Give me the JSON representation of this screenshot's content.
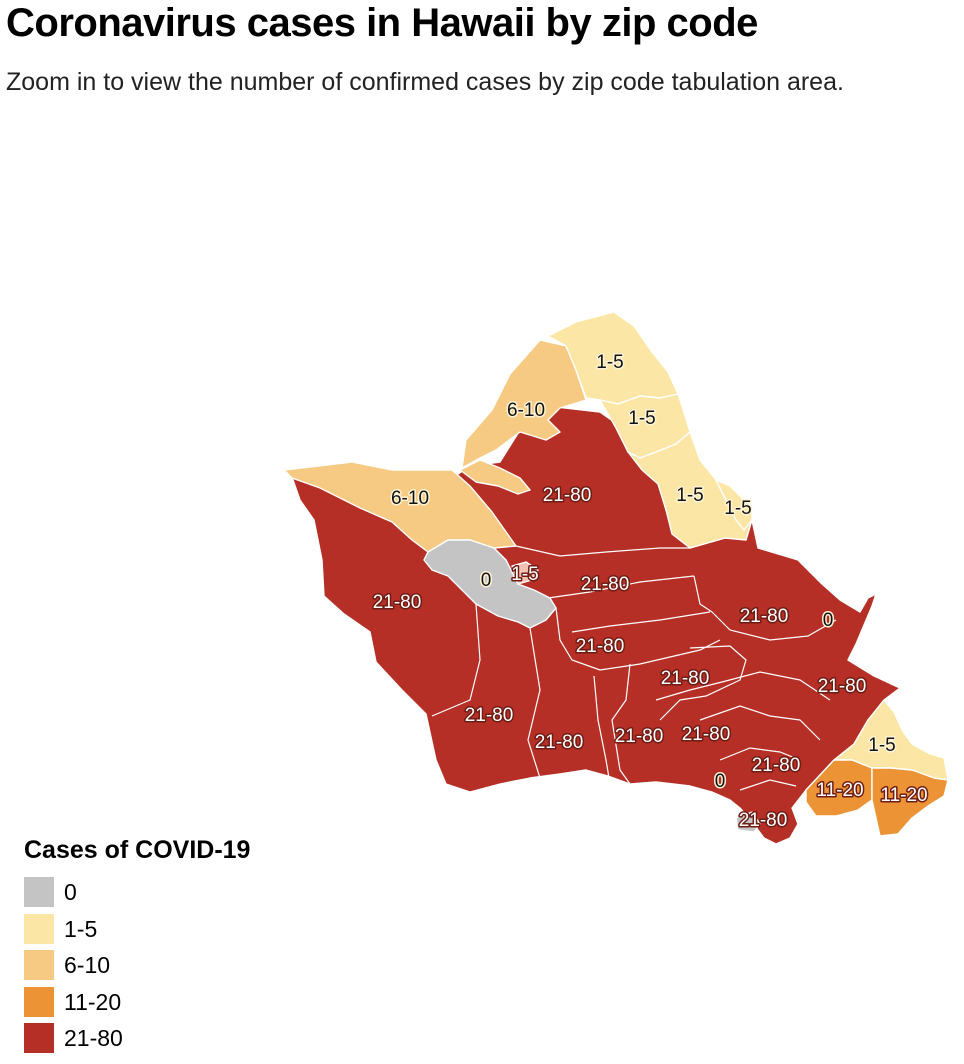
{
  "title": "Coronavirus cases in Hawaii by zip code",
  "subtitle": "Zoom in to view the number of confirmed cases by zip code tabulation area.",
  "legend": {
    "title": "Cases of COVID-19",
    "items": [
      {
        "label": "0",
        "color": "#c4c4c4"
      },
      {
        "label": "1-5",
        "color": "#fce6a6"
      },
      {
        "label": "6-10",
        "color": "#f6ca82"
      },
      {
        "label": "11-20",
        "color": "#ec9336"
      },
      {
        "label": "21-80",
        "color": "#b52f26"
      }
    ]
  },
  "map": {
    "labels": [
      "1-5",
      "6-10",
      "1-5",
      "6-10",
      "21-80",
      "1-5",
      "1-5",
      "0",
      "1-5",
      "21-80",
      "21-80",
      "21-80",
      "21-80",
      "0",
      "21-80",
      "21-80",
      "21-80",
      "21-80",
      "21-80",
      "21-80",
      "1-5",
      "0",
      "21-80",
      "11-20",
      "11-20",
      "21-80"
    ]
  }
}
